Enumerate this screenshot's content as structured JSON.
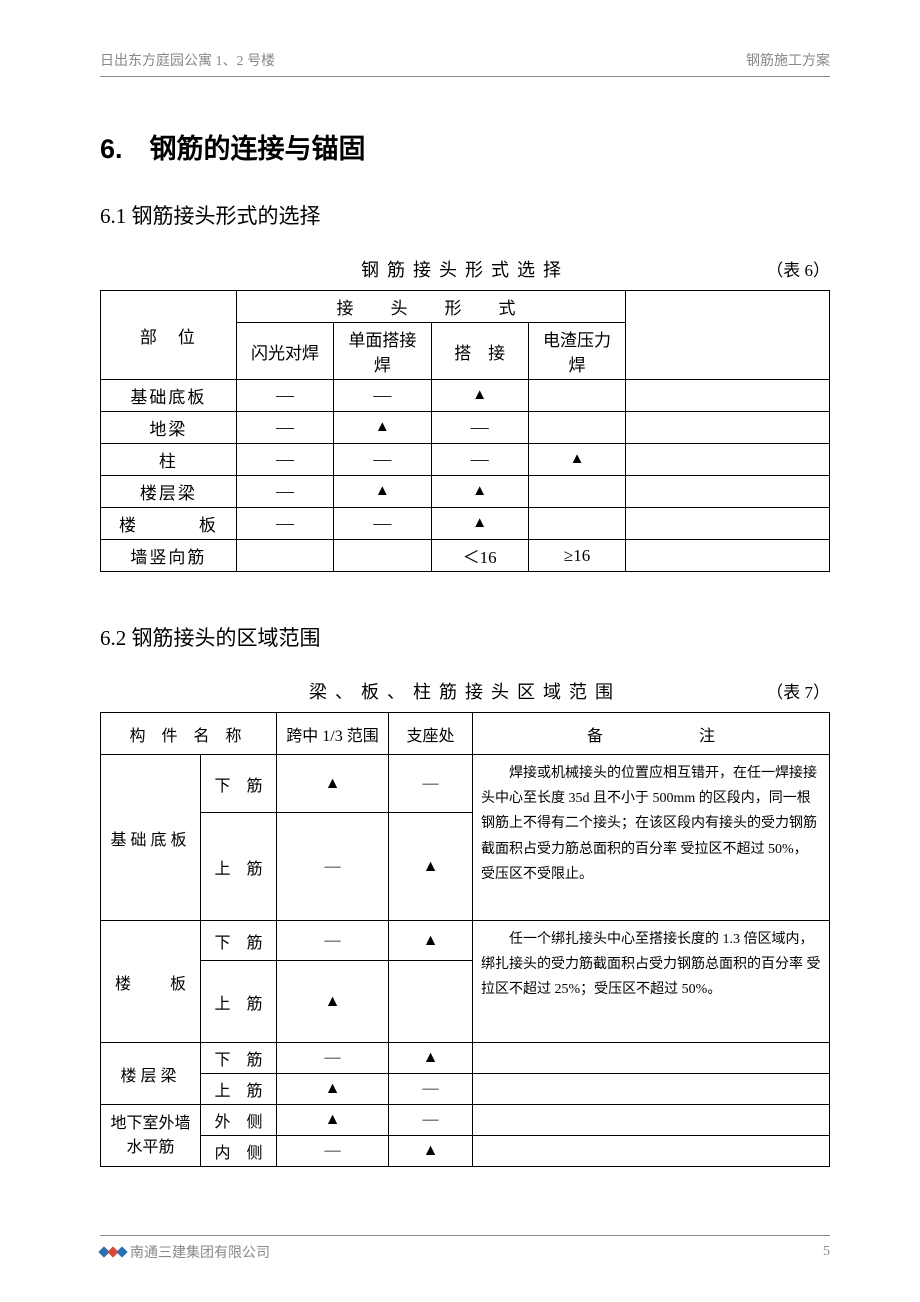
{
  "header": {
    "left": "日出东方庭园公寓 1、2 号楼",
    "right": "钢筋施工方案"
  },
  "section": {
    "h1": "6.　钢筋的连接与锚固",
    "h2_1": "6.1 钢筋接头形式的选择",
    "h2_2": "6.2 钢筋接头的区域范围"
  },
  "table6": {
    "caption": "钢筋接头形式选择",
    "caption_num": "（表 6）",
    "head_loc": "部　位",
    "head_group": "接　头　形　式",
    "head_cols": [
      "闪光对焊",
      "单面搭接焊",
      "搭　接",
      "电渣压力焊"
    ],
    "rows": [
      {
        "label": "基础底板",
        "cells": [
          "—",
          "—",
          "▲",
          ""
        ]
      },
      {
        "label": "地梁",
        "cells": [
          "—",
          "▲",
          "—",
          ""
        ]
      },
      {
        "label": "柱",
        "cells": [
          "—",
          "—",
          "—",
          "▲"
        ]
      },
      {
        "label": "楼层梁",
        "cells": [
          "—",
          "▲",
          "▲",
          ""
        ]
      },
      {
        "label": "楼　　板",
        "cells": [
          "—",
          "—",
          "▲",
          ""
        ],
        "wide": true
      },
      {
        "label": "墙竖向筋",
        "cells": [
          "",
          "",
          "＜16",
          "≥16"
        ]
      }
    ]
  },
  "table7": {
    "caption": "梁、板、柱筋接头区域范围",
    "caption_num": "（表 7）",
    "head": [
      "构 件 名 称",
      "跨中 1/3 范围",
      "支座处",
      "备　　　　　　注"
    ],
    "groups": [
      {
        "name": "基础底板",
        "rows": [
          {
            "sub": "下　筋",
            "c": "▲",
            "d": "—"
          },
          {
            "sub": "上　筋",
            "c": "—",
            "d": "▲"
          }
        ],
        "note": "焊接或机械接头的位置应相互错开，在任一焊接接头中心至长度 35d 且不小于 500mm 的区段内，同一根钢筋上不得有二个接头；在该区段内有接头的受力钢筋截面积占受力筋总面积的百分率 受拉区不超过 50%，受压区不受限止。"
      },
      {
        "name": "楼　板",
        "wide": true,
        "rows": [
          {
            "sub": "下　筋",
            "c": "—",
            "d": "▲"
          },
          {
            "sub": "上　筋",
            "c": "▲",
            "d": ""
          }
        ],
        "note": "任一个绑扎接头中心至搭接长度的 1.3 倍区域内，绑扎接头的受力筋截面积占受力钢筋总面积的百分率 受拉区不超过 25%；受压区不超过 50%。"
      },
      {
        "name": "楼层梁",
        "rows": [
          {
            "sub": "下　筋",
            "c": "—",
            "d": "▲",
            "note": ""
          },
          {
            "sub": "上　筋",
            "c": "▲",
            "d": "—",
            "note": ""
          }
        ]
      },
      {
        "name": "地下室外墙水平筋",
        "twoLine": true,
        "rows": [
          {
            "sub": "外　侧",
            "c": "▲",
            "d": "—",
            "note": ""
          },
          {
            "sub": "内　侧",
            "c": "—",
            "d": "▲",
            "note": ""
          }
        ]
      }
    ]
  },
  "footer": {
    "company": "南通三建集团有限公司",
    "page": "5"
  },
  "marks": {
    "tri": "▲",
    "dash": "—"
  }
}
